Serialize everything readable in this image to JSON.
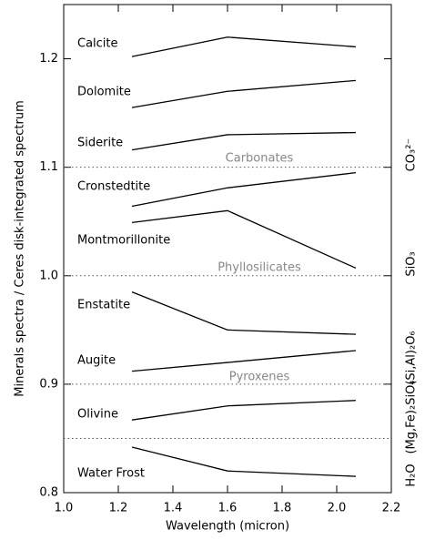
{
  "chart_data": {
    "type": "line",
    "x_label": "Wavelength (micron)",
    "y_label": "Minerals spectra / Ceres disk-integrated spectrum",
    "x": [
      1.25,
      1.6,
      2.07
    ],
    "series": [
      {
        "name": "Calcite",
        "color": "#000000",
        "values": [
          1.202,
          1.22,
          1.211
        ]
      },
      {
        "name": "Dolomite",
        "color": "#000000",
        "values": [
          1.155,
          1.17,
          1.18
        ]
      },
      {
        "name": "Siderite",
        "color": "#000000",
        "values": [
          1.116,
          1.13,
          1.132
        ]
      },
      {
        "name": "Cronstedtite",
        "color": "#000000",
        "values": [
          1.064,
          1.081,
          1.095
        ]
      },
      {
        "name": "Montmorillonite",
        "color": "#000000",
        "values": [
          1.049,
          1.06,
          1.007
        ]
      },
      {
        "name": "Enstatite",
        "color": "#000000",
        "values": [
          0.985,
          0.95,
          0.946
        ]
      },
      {
        "name": "Augite",
        "color": "#000000",
        "values": [
          0.912,
          0.92,
          0.931
        ]
      },
      {
        "name": "Olivine",
        "color": "#000000",
        "values": [
          0.867,
          0.88,
          0.885
        ]
      },
      {
        "name": "Water Frost",
        "color": "#000000",
        "values": [
          0.842,
          0.82,
          0.815
        ]
      }
    ],
    "reference_lines": [
      1.1,
      1.0,
      0.9,
      0.85
    ],
    "group_labels": [
      "Carbonates",
      "Phyllosilicates",
      "Pyroxenes"
    ],
    "right_labels": [
      "CO₃²⁻",
      "SiO₃",
      "(Si,Al)₂O₆",
      "(Mg,Fe)₂SiO₄",
      "H₂O"
    ],
    "xlim": [
      1.0,
      2.2
    ],
    "xticks": [
      {
        "value": 1.0,
        "label": "1.0"
      },
      1.2,
      1.4,
      1.6,
      1.8,
      {
        "value": 2.0,
        "label": "2.0"
      },
      2.2
    ],
    "ylim": [
      0.8,
      1.25
    ],
    "yticks": [
      0.8,
      0.9,
      {
        "value": 1.0,
        "label": "1.0"
      },
      1.1,
      1.2
    ]
  }
}
